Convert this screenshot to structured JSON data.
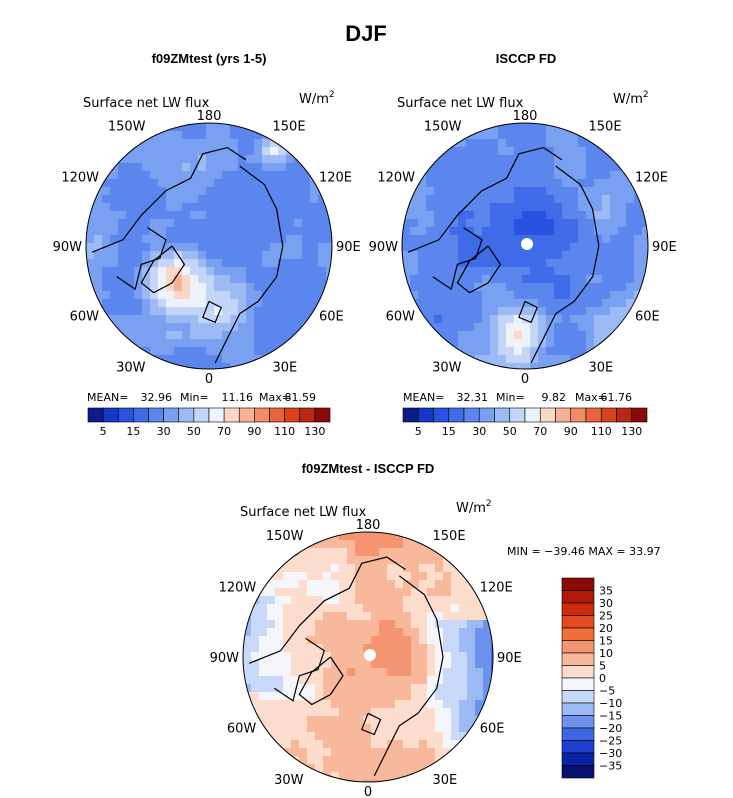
{
  "figure": {
    "title": "DJF"
  },
  "colors": {
    "grid_text": "#000000",
    "pole": "#ffffff",
    "coast": "#000000"
  },
  "chart_data": [
    {
      "type": "heatmap",
      "projection": "polar-stereographic-north",
      "title": "f09ZMtest (yrs 1-5)",
      "variable": "Surface net LW flux",
      "units": "W/m",
      "units_exp": "2",
      "stats": {
        "mean_label": "MEAN=",
        "mean": "32.96",
        "min_label": "Min=",
        "min": "11.16",
        "max_label": "Max=",
        "max": "81.59"
      },
      "lon_labels": [
        "180",
        "150E",
        "120E",
        "90E",
        "60E",
        "30E",
        "0",
        "30W",
        "60W",
        "90W",
        "120W",
        "150W"
      ],
      "colorbar": {
        "orientation": "horizontal",
        "ticks": [
          "5",
          "15",
          "30",
          "50",
          "70",
          "90",
          "110",
          "130"
        ],
        "levels": [
          0,
          5,
          10,
          15,
          20,
          30,
          40,
          50,
          60,
          70,
          80,
          90,
          100,
          110,
          120,
          130
        ],
        "colors": [
          "#0a1c8c",
          "#1836c8",
          "#2a52e0",
          "#3e6ce8",
          "#5a86ee",
          "#7aa0f2",
          "#9cbaf4",
          "#c4d6f8",
          "#eef2fb",
          "#fbd8c6",
          "#f6b294",
          "#f08c66",
          "#e8643c",
          "#d8421e",
          "#b82812",
          "#8c0a06"
        ]
      },
      "pole_hole": false
    },
    {
      "type": "heatmap",
      "projection": "polar-stereographic-north",
      "title": "ISCCP FD",
      "variable": "Surface net LW flux",
      "units": "W/m",
      "units_exp": "2",
      "stats": {
        "mean_label": "MEAN=",
        "mean": "32.31",
        "min_label": "Min=",
        "min": "9.82",
        "max_label": "Max=",
        "max": "61.76"
      },
      "lon_labels": [
        "180",
        "150E",
        "120E",
        "90E",
        "60E",
        "30E",
        "0",
        "30W",
        "60W",
        "90W",
        "120W",
        "150W"
      ],
      "colorbar": {
        "orientation": "horizontal",
        "ticks": [
          "5",
          "15",
          "30",
          "50",
          "70",
          "90",
          "110",
          "130"
        ],
        "levels": [
          0,
          5,
          10,
          15,
          20,
          30,
          40,
          50,
          60,
          70,
          80,
          90,
          100,
          110,
          120,
          130
        ],
        "colors": [
          "#0a1c8c",
          "#1836c8",
          "#2a52e0",
          "#3e6ce8",
          "#5a86ee",
          "#7aa0f2",
          "#9cbaf4",
          "#c4d6f8",
          "#eef2fb",
          "#fbd8c6",
          "#f6b294",
          "#f08c66",
          "#e8643c",
          "#d8421e",
          "#b82812",
          "#8c0a06"
        ]
      },
      "pole_hole": true
    },
    {
      "type": "heatmap",
      "projection": "polar-stereographic-north",
      "title": "f09ZMtest - ISCCP FD",
      "variable": "Surface net LW flux",
      "units": "W/m",
      "units_exp": "2",
      "stats": {
        "text": "MIN = −39.46  MAX =  33.97",
        "min": "−39.46",
        "max": "33.97"
      },
      "lon_labels": [
        "180",
        "150E",
        "120E",
        "90E",
        "60E",
        "30E",
        "0",
        "30W",
        "60W",
        "90W",
        "120W",
        "150W"
      ],
      "colorbar": {
        "orientation": "vertical",
        "ticks": [
          "35",
          "30",
          "25",
          "20",
          "15",
          "10",
          "5",
          "0",
          "−5",
          "−10",
          "−15",
          "−20",
          "−25",
          "−30",
          "−35"
        ],
        "colors": [
          "#8c0a06",
          "#b01808",
          "#cc2a0c",
          "#e44a1c",
          "#f06e3c",
          "#f49470",
          "#f8b89c",
          "#fcdccc",
          "#f4f6fc",
          "#c8d8f8",
          "#9cbaf4",
          "#6c92ee",
          "#3e66e4",
          "#1e3ed2",
          "#0c22a8",
          "#06126e"
        ]
      },
      "pole_hole": true
    }
  ]
}
